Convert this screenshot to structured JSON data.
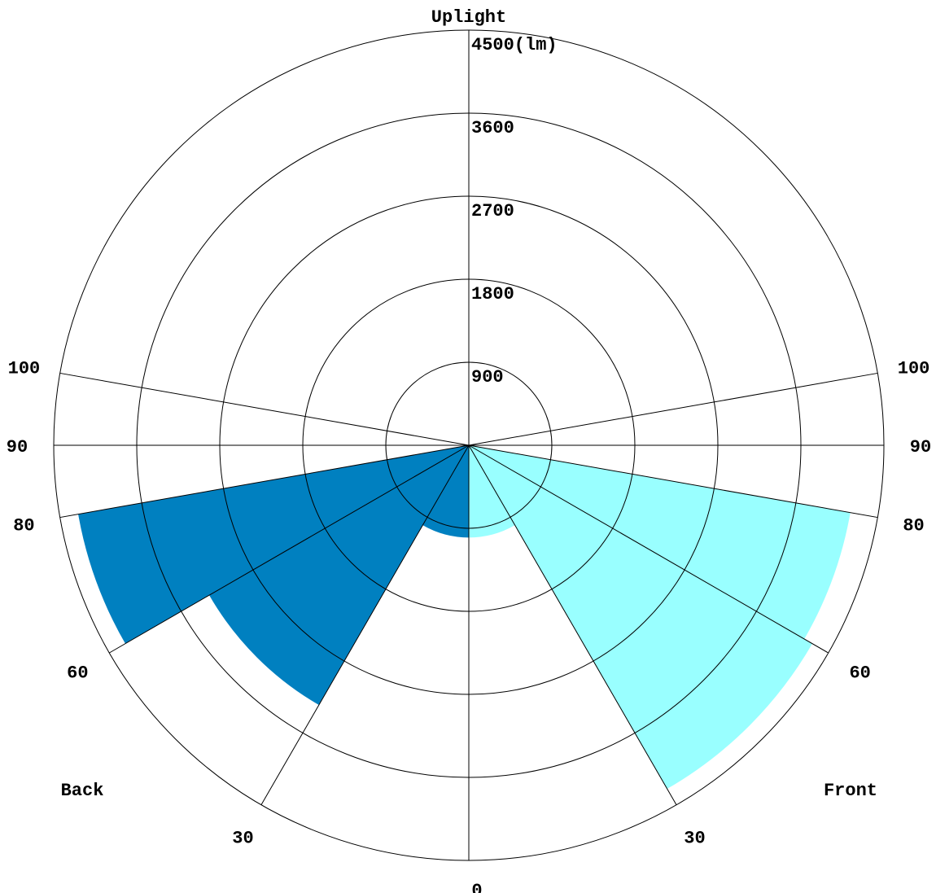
{
  "chart_data": {
    "type": "polar-bar",
    "title": "",
    "top_label": "Uplight",
    "side_labels": {
      "front": "Front",
      "back": "Back"
    },
    "radial_axis": {
      "max": 4500,
      "unit": "(lm)",
      "ticks": [
        900,
        1800,
        2700,
        3600,
        4500
      ],
      "tick_labels": [
        "900",
        "1800",
        "2700",
        "3600",
        "4500(lm)"
      ]
    },
    "angle_ticks": [
      0,
      30,
      60,
      80,
      90,
      100
    ],
    "angle_tick_labels": [
      "0",
      "30",
      "60",
      "80",
      "90",
      "100"
    ],
    "zones": [
      {
        "side": "front",
        "from": 0,
        "to": 30,
        "lumens": 1000,
        "color": "#99ffff"
      },
      {
        "side": "front",
        "from": 30,
        "to": 60,
        "lumens": 4300,
        "color": "#99ffff"
      },
      {
        "side": "front",
        "from": 60,
        "to": 80,
        "lumens": 4200,
        "color": "#99ffff"
      },
      {
        "side": "back",
        "from": 0,
        "to": 30,
        "lumens": 1000,
        "color": "#0080c0"
      },
      {
        "side": "back",
        "from": 30,
        "to": 60,
        "lumens": 3250,
        "color": "#0080c0"
      },
      {
        "side": "back",
        "from": 60,
        "to": 80,
        "lumens": 4300,
        "color": "#0080c0"
      }
    ]
  }
}
